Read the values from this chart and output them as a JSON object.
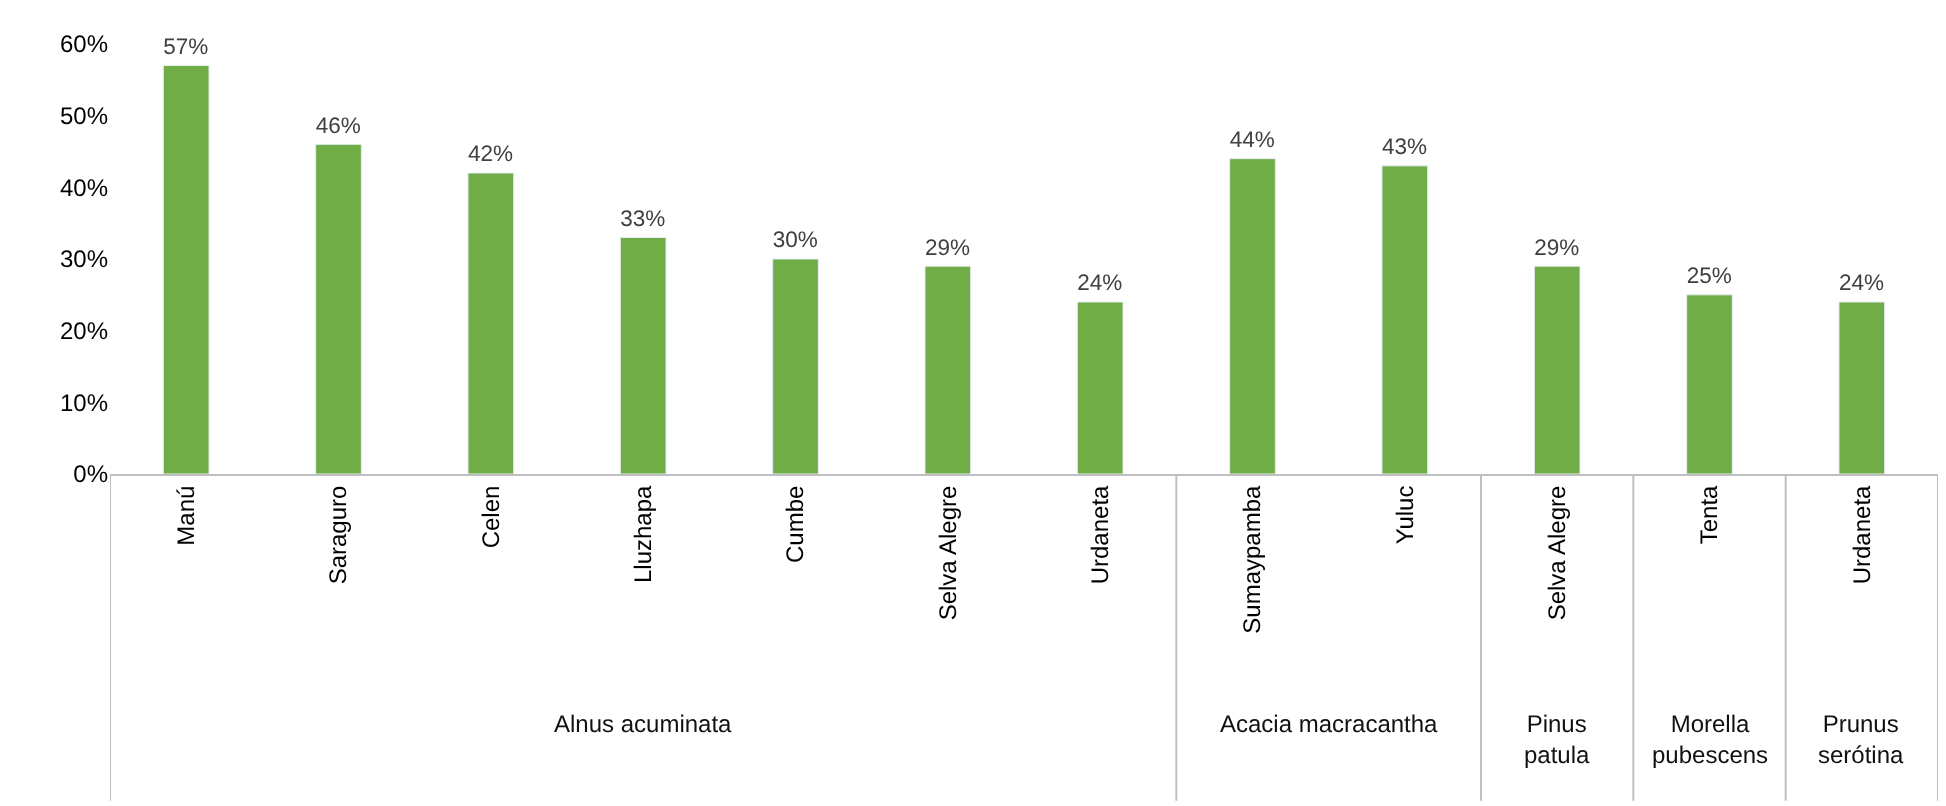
{
  "chart_data": {
    "type": "bar",
    "categories": [
      "Manú",
      "Saraguro",
      "Celen",
      "Lluzhapa",
      "Cumbe",
      "Selva Alegre",
      "Urdaneta",
      "Sumaypamba",
      "Yuluc",
      "Selva Alegre",
      "Tenta",
      "Urdaneta"
    ],
    "series": [
      {
        "color": "#70ad47",
        "values": [
          57,
          46,
          42,
          33,
          30,
          29,
          24,
          null,
          null,
          null,
          null,
          null
        ],
        "value_labels": [
          "57%",
          "46%",
          "42%",
          "33%",
          "30%",
          "29%",
          "24%",
          null,
          null,
          null,
          null,
          null
        ]
      },
      {
        "color": "#70ad47",
        "values": [
          null,
          null,
          null,
          null,
          null,
          null,
          null,
          44,
          43,
          null,
          null,
          null
        ],
        "value_labels": [
          null,
          null,
          null,
          null,
          null,
          null,
          null,
          "44%",
          "43%",
          null,
          null,
          null
        ]
      },
      {
        "color": "#70ad47",
        "values": [
          null,
          null,
          null,
          null,
          null,
          null,
          null,
          null,
          null,
          29,
          null,
          null
        ],
        "value_labels": [
          null,
          null,
          null,
          null,
          null,
          null,
          null,
          null,
          null,
          "29%",
          null,
          null
        ]
      },
      {
        "color": "#70ad47",
        "values": [
          null,
          null,
          null,
          null,
          null,
          null,
          null,
          null,
          null,
          null,
          25,
          null
        ],
        "value_labels": [
          null,
          null,
          null,
          null,
          null,
          null,
          null,
          null,
          null,
          null,
          "25%",
          null
        ]
      },
      {
        "color": "#70ad47",
        "values": [
          null,
          null,
          null,
          null,
          null,
          null,
          null,
          null,
          null,
          null,
          null,
          24
        ],
        "value_labels": [
          null,
          null,
          null,
          null,
          null,
          null,
          null,
          null,
          null,
          null,
          null,
          "24%"
        ]
      }
    ],
    "annotations": [
      "Alnus acuminata",
      "Acacia macracantha",
      "Pinus patula",
      "Morella pubescens",
      "Prunus serótina"
    ],
    "ylim": [
      0,
      60
    ],
    "yticks": [
      {
        "value": 0,
        "label": "0%"
      },
      {
        "value": 10,
        "label": "10%"
      },
      {
        "value": 20,
        "label": "20%"
      },
      {
        "value": 30,
        "label": "30%"
      },
      {
        "value": 40,
        "label": "40%"
      },
      {
        "value": 50,
        "label": "50%"
      },
      {
        "value": 60,
        "label": "60%"
      }
    ],
    "grid": false,
    "legend": false
  }
}
